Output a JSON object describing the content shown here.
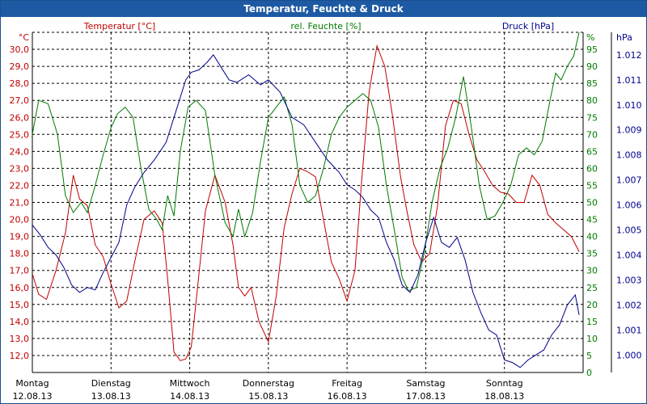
{
  "window": {
    "title": "Temperatur, Feuchte & Druck"
  },
  "colors": {
    "temperature": "#c00000",
    "humidity": "#007a00",
    "pressure": "#00008b",
    "grid": "#000000"
  },
  "chart_data": {
    "type": "line",
    "title": "Temperatur, Feuchte & Druck",
    "grid": true,
    "x_range_days": [
      0,
      7
    ],
    "x_ticks": [
      {
        "day": 0,
        "label": "Montag",
        "date": "12.08.13"
      },
      {
        "day": 1,
        "label": "Dienstag",
        "date": "13.08.13"
      },
      {
        "day": 2,
        "label": "Mittwoch",
        "date": "14.08.13"
      },
      {
        "day": 3,
        "label": "Donnerstag",
        "date": "15.08.13"
      },
      {
        "day": 4,
        "label": "Freitag",
        "date": "16.08.13"
      },
      {
        "day": 5,
        "label": "Samstag",
        "date": "17.08.13"
      },
      {
        "day": 6,
        "label": "Sonntag",
        "date": "18.08.13"
      }
    ],
    "axes": {
      "temperature": {
        "label": "Temperatur [°C]",
        "unit": "°C",
        "range": [
          11.0,
          31.0
        ],
        "ticks": [
          "12,0",
          "13,0",
          "14,0",
          "15,0",
          "16,0",
          "17,0",
          "18,0",
          "19,0",
          "20,0",
          "21,0",
          "22,0",
          "23,0",
          "24,0",
          "25,0",
          "26,0",
          "27,0",
          "28,0",
          "29,0",
          "30,0"
        ]
      },
      "humidity": {
        "label": "rel. Feuchte [%]",
        "unit": "%",
        "range": [
          0,
          100
        ],
        "ticks": [
          "0",
          "5",
          "10",
          "15",
          "20",
          "25",
          "30",
          "35",
          "40",
          "45",
          "50",
          "55",
          "60",
          "65",
          "70",
          "75",
          "80",
          "85",
          "90",
          "95"
        ]
      },
      "pressure": {
        "label": "Druck [hPa]",
        "unit": "hPa",
        "range": [
          0.9993,
          1.0129
        ],
        "ticks": [
          "1.000",
          "1.001",
          "1.002",
          "1.003",
          "1.004",
          "1.005",
          "1.006",
          "1.007",
          "1.008",
          "1.009",
          "1.010",
          "1.011",
          "1.012"
        ]
      }
    },
    "series": [
      {
        "name": "Temperatur [°C]",
        "axis": "temperature",
        "x": [
          0,
          0.08,
          0.18,
          0.3,
          0.42,
          0.52,
          0.6,
          0.7,
          0.8,
          0.9,
          1.0,
          1.1,
          1.2,
          1.3,
          1.42,
          1.55,
          1.65,
          1.72,
          1.8,
          1.88,
          1.95,
          2.02,
          2.1,
          2.2,
          2.32,
          2.45,
          2.55,
          2.62,
          2.7,
          2.78,
          2.88,
          3.0,
          3.1,
          3.2,
          3.3,
          3.4,
          3.5,
          3.6,
          3.7,
          3.8,
          3.9,
          4.0,
          4.1,
          4.18,
          4.28,
          4.38,
          4.48,
          4.58,
          4.68,
          4.76,
          4.85,
          4.95,
          5.05,
          5.15,
          5.25,
          5.35,
          5.45,
          5.55,
          5.65,
          5.75,
          5.85,
          5.95,
          6.05,
          6.15,
          6.25,
          6.35,
          6.45,
          6.55,
          6.65,
          6.75,
          6.85,
          6.95
        ],
        "y": [
          16.8,
          15.6,
          15.3,
          17.0,
          19.2,
          22.6,
          21.2,
          20.8,
          18.5,
          17.8,
          16.2,
          14.8,
          15.2,
          17.5,
          20.0,
          20.5,
          19.8,
          16.5,
          12.2,
          11.7,
          11.8,
          12.5,
          16.0,
          20.5,
          22.6,
          21.0,
          18.5,
          16.0,
          15.5,
          16.0,
          14.0,
          12.8,
          15.5,
          19.5,
          21.5,
          23.0,
          22.8,
          22.5,
          20.0,
          17.5,
          16.5,
          15.2,
          17.0,
          22.0,
          27.5,
          30.2,
          29.0,
          26.0,
          22.5,
          20.5,
          18.5,
          17.5,
          18.0,
          20.8,
          25.5,
          27.0,
          26.8,
          25.0,
          23.5,
          22.8,
          22.0,
          21.6,
          21.5,
          21.0,
          21.0,
          22.6,
          22.0,
          20.3,
          19.8,
          19.4,
          19.0,
          18.1
        ]
      },
      {
        "name": "rel. Feuchte [%]",
        "axis": "humidity",
        "x": [
          0,
          0.08,
          0.2,
          0.32,
          0.42,
          0.52,
          0.62,
          0.7,
          0.8,
          0.9,
          1.0,
          1.08,
          1.18,
          1.28,
          1.38,
          1.48,
          1.58,
          1.65,
          1.72,
          1.8,
          1.88,
          1.98,
          2.08,
          2.2,
          2.32,
          2.45,
          2.55,
          2.62,
          2.7,
          2.8,
          2.9,
          3.0,
          3.1,
          3.2,
          3.3,
          3.4,
          3.5,
          3.6,
          3.7,
          3.8,
          3.9,
          4.0,
          4.1,
          4.2,
          4.3,
          4.4,
          4.5,
          4.6,
          4.7,
          4.78,
          4.88,
          4.98,
          5.08,
          5.18,
          5.28,
          5.38,
          5.48,
          5.58,
          5.68,
          5.78,
          5.88,
          5.98,
          6.08,
          6.18,
          6.28,
          6.38,
          6.48,
          6.58,
          6.65,
          6.72,
          6.8,
          6.88,
          6.95
        ],
        "y": [
          70,
          80,
          79,
          70,
          52,
          47,
          50,
          47,
          55,
          64,
          72,
          76,
          78,
          75,
          60,
          48,
          45,
          42,
          52,
          46,
          65,
          78,
          80,
          77,
          58,
          44,
          40,
          48,
          40,
          47,
          62,
          75,
          78,
          81,
          73,
          55,
          50,
          52,
          60,
          70,
          75,
          78,
          80,
          82,
          80,
          72,
          55,
          42,
          28,
          24,
          25,
          35,
          50,
          60,
          66,
          75,
          87,
          72,
          55,
          45,
          46,
          50,
          55,
          64,
          66,
          64,
          68,
          80,
          88,
          86,
          90,
          93,
          100
        ]
      },
      {
        "name": "Druck [hPa]",
        "axis": "pressure",
        "x": [
          0,
          0.1,
          0.2,
          0.3,
          0.4,
          0.5,
          0.6,
          0.7,
          0.8,
          0.9,
          1.0,
          1.1,
          1.2,
          1.3,
          1.42,
          1.55,
          1.7,
          1.85,
          1.95,
          2.02,
          2.12,
          2.22,
          2.3,
          2.4,
          2.5,
          2.6,
          2.75,
          2.9,
          3.0,
          3.15,
          3.3,
          3.45,
          3.6,
          3.75,
          3.9,
          4.0,
          4.1,
          4.2,
          4.3,
          4.4,
          4.5,
          4.6,
          4.7,
          4.8,
          4.9,
          5.0,
          5.1,
          5.2,
          5.3,
          5.4,
          5.5,
          5.6,
          5.7,
          5.8,
          5.9,
          6.0,
          6.1,
          6.2,
          6.3,
          6.4,
          6.5,
          6.6,
          6.7,
          6.8,
          6.9,
          6.95
        ],
        "y": [
          1.0052,
          1.0048,
          1.0043,
          1.004,
          1.0035,
          1.0028,
          1.0025,
          1.0027,
          1.0026,
          1.0033,
          1.0039,
          1.0045,
          1.006,
          1.0067,
          1.0073,
          1.0078,
          1.0085,
          1.01,
          1.011,
          1.0113,
          1.0114,
          1.0117,
          1.012,
          1.0115,
          1.011,
          1.0109,
          1.0112,
          1.0108,
          1.011,
          1.0105,
          1.0095,
          1.0092,
          1.0085,
          1.0078,
          1.0073,
          1.0068,
          1.0066,
          1.0063,
          1.0058,
          1.0055,
          1.0045,
          1.0038,
          1.0028,
          1.0025,
          1.0032,
          1.0045,
          1.0055,
          1.0045,
          1.0043,
          1.0047,
          1.0038,
          1.0025,
          1.0017,
          1.001,
          1.0008,
          0.9998,
          0.9997,
          0.9995,
          0.9998,
          1.0,
          1.0002,
          1.0008,
          1.0012,
          1.002,
          1.0024,
          1.0016
        ]
      }
    ]
  }
}
